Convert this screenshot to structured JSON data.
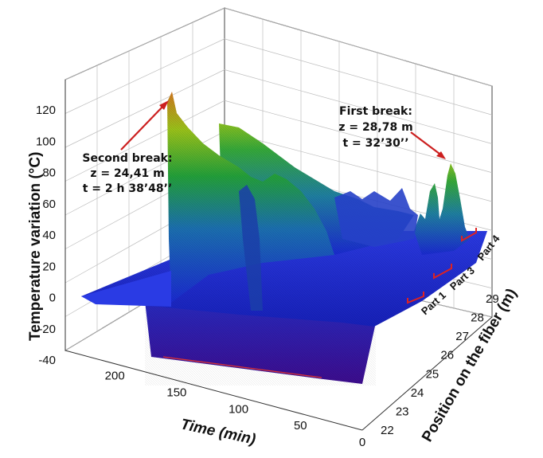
{
  "chart_data": {
    "type": "surface",
    "ylabel": "Temperature variation (°C)",
    "xlabel": "Time (min)",
    "zlabel": "Position on the fiber (m)",
    "y_ticks": [
      "-40",
      "-20",
      "0",
      "20",
      "40",
      "60",
      "80",
      "100",
      "120"
    ],
    "x_ticks": [
      "200",
      "150",
      "100",
      "50",
      "0"
    ],
    "z_ticks": [
      "22",
      "23",
      "24",
      "25",
      "26",
      "27",
      "28",
      "29"
    ],
    "ylim": [
      -40,
      130
    ],
    "xlim": [
      0,
      240
    ],
    "zlim": [
      22,
      29.5
    ],
    "colors": {
      "low": "#3a0a8c",
      "base": "#1c2fd2",
      "mid": "#1f8f3a",
      "high": "#8ac21a",
      "top": "#d27a1e",
      "arrow": "#cc1f1f",
      "bracket": "#dd2222"
    },
    "annotations": [
      {
        "lines": [
          "Second break:",
          "z = 24,41 m",
          "t = 2 h 38’48’’"
        ],
        "peak_time_min": 158.8,
        "peak_position_m": 24.41,
        "peak_value_c": 125
      },
      {
        "lines": [
          "First break:",
          "z = 28,78 m",
          "t = 32’30’’"
        ],
        "peak_time_min": 32.5,
        "peak_position_m": 28.78,
        "peak_value_c": 70
      }
    ],
    "parts": [
      "Part 1",
      "Part 3",
      "Part 4"
    ]
  }
}
